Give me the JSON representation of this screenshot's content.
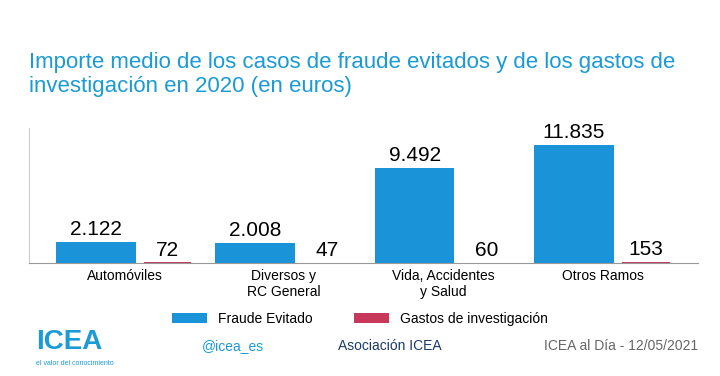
{
  "chart_data": {
    "type": "bar",
    "title": "Importe medio de los casos de fraude evitados y de los gastos de investigación en 2020 (en euros)",
    "categories": [
      "Automóviles",
      "Diversos y\nRC General",
      "Vida, Accidentes\ny Salud",
      "Otros Ramos"
    ],
    "series": [
      {
        "name": "Fraude Evitado",
        "color": "#1a93d8",
        "values": [
          2122,
          2008,
          9492,
          11835
        ],
        "value_labels": [
          "2.122",
          "2.008",
          "9.492",
          "11.835"
        ]
      },
      {
        "name": "Gastos de investigación",
        "color": "#c8385a",
        "values": [
          72,
          47,
          60,
          153
        ],
        "value_labels": [
          "72",
          "47",
          "60",
          "153"
        ]
      }
    ],
    "ylim": [
      0,
      13500
    ],
    "yticks": [],
    "data_labels": true,
    "tick_labels": "x",
    "grid": false,
    "legend": "lower center",
    "annotations": [
      "ICEA",
      "el valor del conocimiento",
      "@icea_es",
      "Asociación ICEA",
      "ICEA al Día - 12/05/2021"
    ]
  }
}
